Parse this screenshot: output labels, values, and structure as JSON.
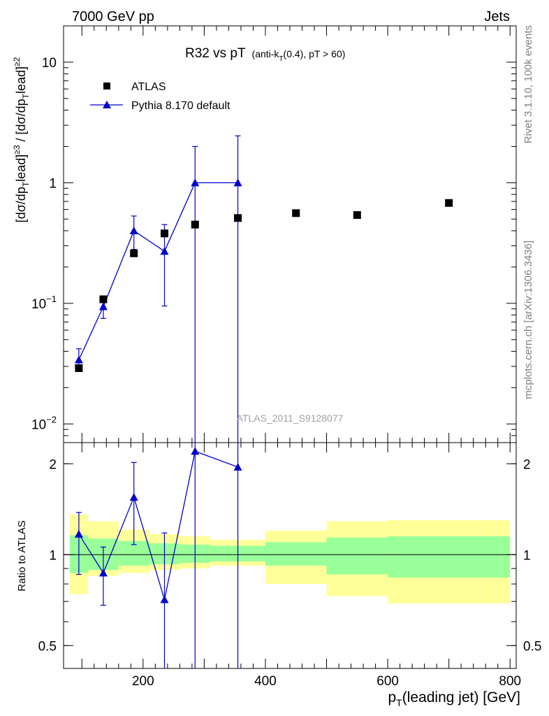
{
  "header": {
    "left": "7000 GeV pp",
    "right": "Jets"
  },
  "side_labels": {
    "rivet": "Rivet 3.1.10,  100k events",
    "mcplots": "mcplots.cern.ch [arXiv:1306.3436]"
  },
  "main_plot": {
    "title_main": "R32 vs pT",
    "title_sub_1": "(anti-k",
    "title_sub_T": "T",
    "title_sub_2": "(0.4), pT > 60)",
    "ylabel": "[dσ/dp_T^lead]^≥3 / [dσ/dp_T^lead]^≥2",
    "watermark": "ATLAS_2011_S9128077",
    "y_ticks": [
      {
        "value": 0.01,
        "base": "10",
        "exp": "−2"
      },
      {
        "value": 0.1,
        "base": "10",
        "exp": "−1"
      },
      {
        "value": 1,
        "base": "1",
        "exp": ""
      },
      {
        "value": 10,
        "base": "10",
        "exp": ""
      }
    ]
  },
  "ratio_plot": {
    "ylabel": "Ratio to ATLAS",
    "y_ticks": [
      "0.5",
      "1",
      "2"
    ],
    "y_tick_values": [
      0.5,
      1,
      2
    ]
  },
  "x_axis": {
    "label": "p_T(leading jet) [GeV]",
    "label_p": "p",
    "label_sub": "T",
    "label_rest": "(leading jet) [GeV]",
    "ticks": [
      "200",
      "400",
      "600",
      "800"
    ],
    "tick_values": [
      200,
      400,
      600,
      800
    ]
  },
  "legend": {
    "atlas": "ATLAS",
    "pythia": "Pythia 8.170 default"
  },
  "colors": {
    "data": "#000000",
    "mc": "#0000cc",
    "band_inner": "#99ff99",
    "band_outer": "#ffff99"
  },
  "chart_data": [
    {
      "type": "scatter",
      "panel": "main",
      "y_scale": "log",
      "xlim": [
        70,
        810
      ],
      "ylim": [
        0.007,
        20
      ],
      "series": [
        {
          "name": "ATLAS",
          "marker": "square",
          "x": [
            95,
            135,
            185,
            235,
            285,
            355,
            450,
            550,
            700
          ],
          "y": [
            0.029,
            0.108,
            0.26,
            0.38,
            0.45,
            0.51,
            0.56,
            0.54,
            0.68
          ]
        },
        {
          "name": "Pythia 8.170 default",
          "marker": "triangle",
          "x": [
            95,
            135,
            185,
            235,
            285,
            355
          ],
          "y": [
            0.034,
            0.094,
            0.4,
            0.27,
            1.0,
            1.0
          ],
          "yerr_low": [
            0.029,
            0.075,
            0.28,
            0.095,
            0.0001,
            0.0001
          ],
          "yerr_high": [
            0.042,
            0.115,
            0.53,
            0.45,
            2.0,
            2.45
          ]
        }
      ]
    },
    {
      "type": "line",
      "panel": "ratio",
      "y_scale": "log",
      "xlim": [
        70,
        810
      ],
      "ylim": [
        0.42,
        2.35
      ],
      "reference": 1,
      "series": [
        {
          "name": "Pythia 8.170 default",
          "x": [
            95,
            135,
            185,
            235,
            285,
            355
          ],
          "y": [
            1.17,
            0.87,
            1.55,
            0.71,
            2.2,
            1.95
          ],
          "yerr_low": [
            0.86,
            0.68,
            1.08,
            0.3,
            0.3,
            0.3
          ],
          "yerr_high": [
            1.38,
            1.06,
            2.02,
            1.18,
            2.5,
            2.5
          ]
        }
      ],
      "bands": [
        {
          "x_low": 80,
          "x_high": 110,
          "inner": [
            0.87,
            1.16
          ],
          "outer": [
            0.74,
            1.36
          ]
        },
        {
          "x_low": 110,
          "x_high": 160,
          "inner": [
            0.89,
            1.13
          ],
          "outer": [
            0.85,
            1.29
          ]
        },
        {
          "x_low": 160,
          "x_high": 210,
          "inner": [
            0.92,
            1.11
          ],
          "outer": [
            0.87,
            1.21
          ]
        },
        {
          "x_low": 210,
          "x_high": 260,
          "inner": [
            0.93,
            1.09
          ],
          "outer": [
            0.89,
            1.17
          ]
        },
        {
          "x_low": 260,
          "x_high": 310,
          "inner": [
            0.94,
            1.08
          ],
          "outer": [
            0.9,
            1.15
          ]
        },
        {
          "x_low": 310,
          "x_high": 400,
          "inner": [
            0.95,
            1.07
          ],
          "outer": [
            0.92,
            1.12
          ]
        },
        {
          "x_low": 400,
          "x_high": 500,
          "inner": [
            0.92,
            1.1
          ],
          "outer": [
            0.8,
            1.2
          ]
        },
        {
          "x_low": 500,
          "x_high": 600,
          "inner": [
            0.86,
            1.14
          ],
          "outer": [
            0.73,
            1.29
          ]
        },
        {
          "x_low": 600,
          "x_high": 800,
          "inner": [
            0.84,
            1.15
          ],
          "outer": [
            0.69,
            1.3
          ]
        }
      ]
    }
  ]
}
